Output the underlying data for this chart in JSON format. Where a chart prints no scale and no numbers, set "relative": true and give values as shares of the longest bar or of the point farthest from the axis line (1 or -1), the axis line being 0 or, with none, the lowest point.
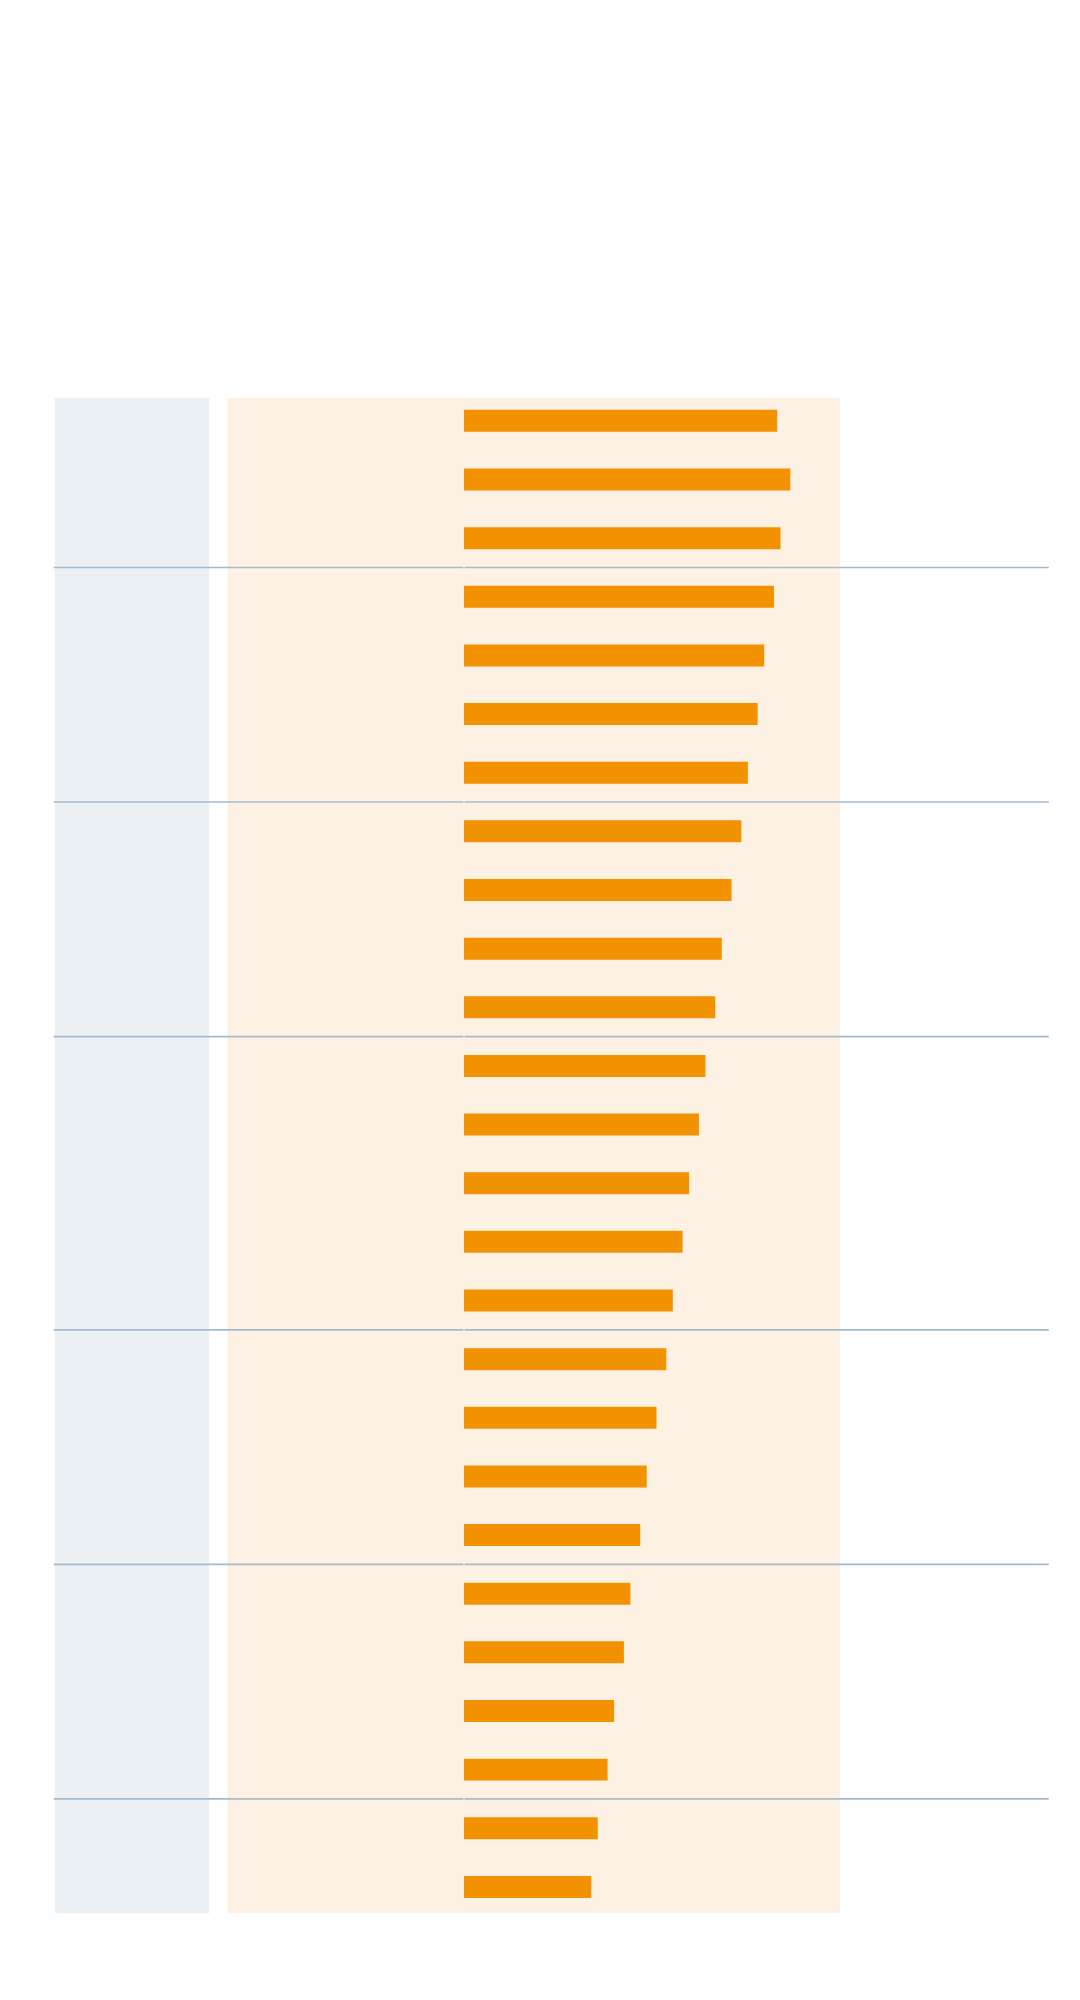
{
  "chart_data": {
    "type": "bar",
    "orientation": "horizontal",
    "relative": true,
    "categories": [
      null,
      null,
      null,
      null,
      null,
      null,
      null,
      null,
      null,
      null,
      null,
      null,
      null,
      null,
      null,
      null,
      null,
      null,
      null,
      null,
      null,
      null,
      null,
      null,
      null,
      null
    ],
    "values": [
      0.96,
      1,
      0.97,
      0.95,
      0.92,
      0.9,
      0.87,
      0.85,
      0.82,
      0.79,
      0.77,
      0.74,
      0.72,
      0.69,
      0.67,
      0.64,
      0.62,
      0.59,
      0.56,
      0.54,
      0.51,
      0.49,
      0.46,
      0.44,
      0.41,
      0.39
    ],
    "color": "#f39200"
  }
}
